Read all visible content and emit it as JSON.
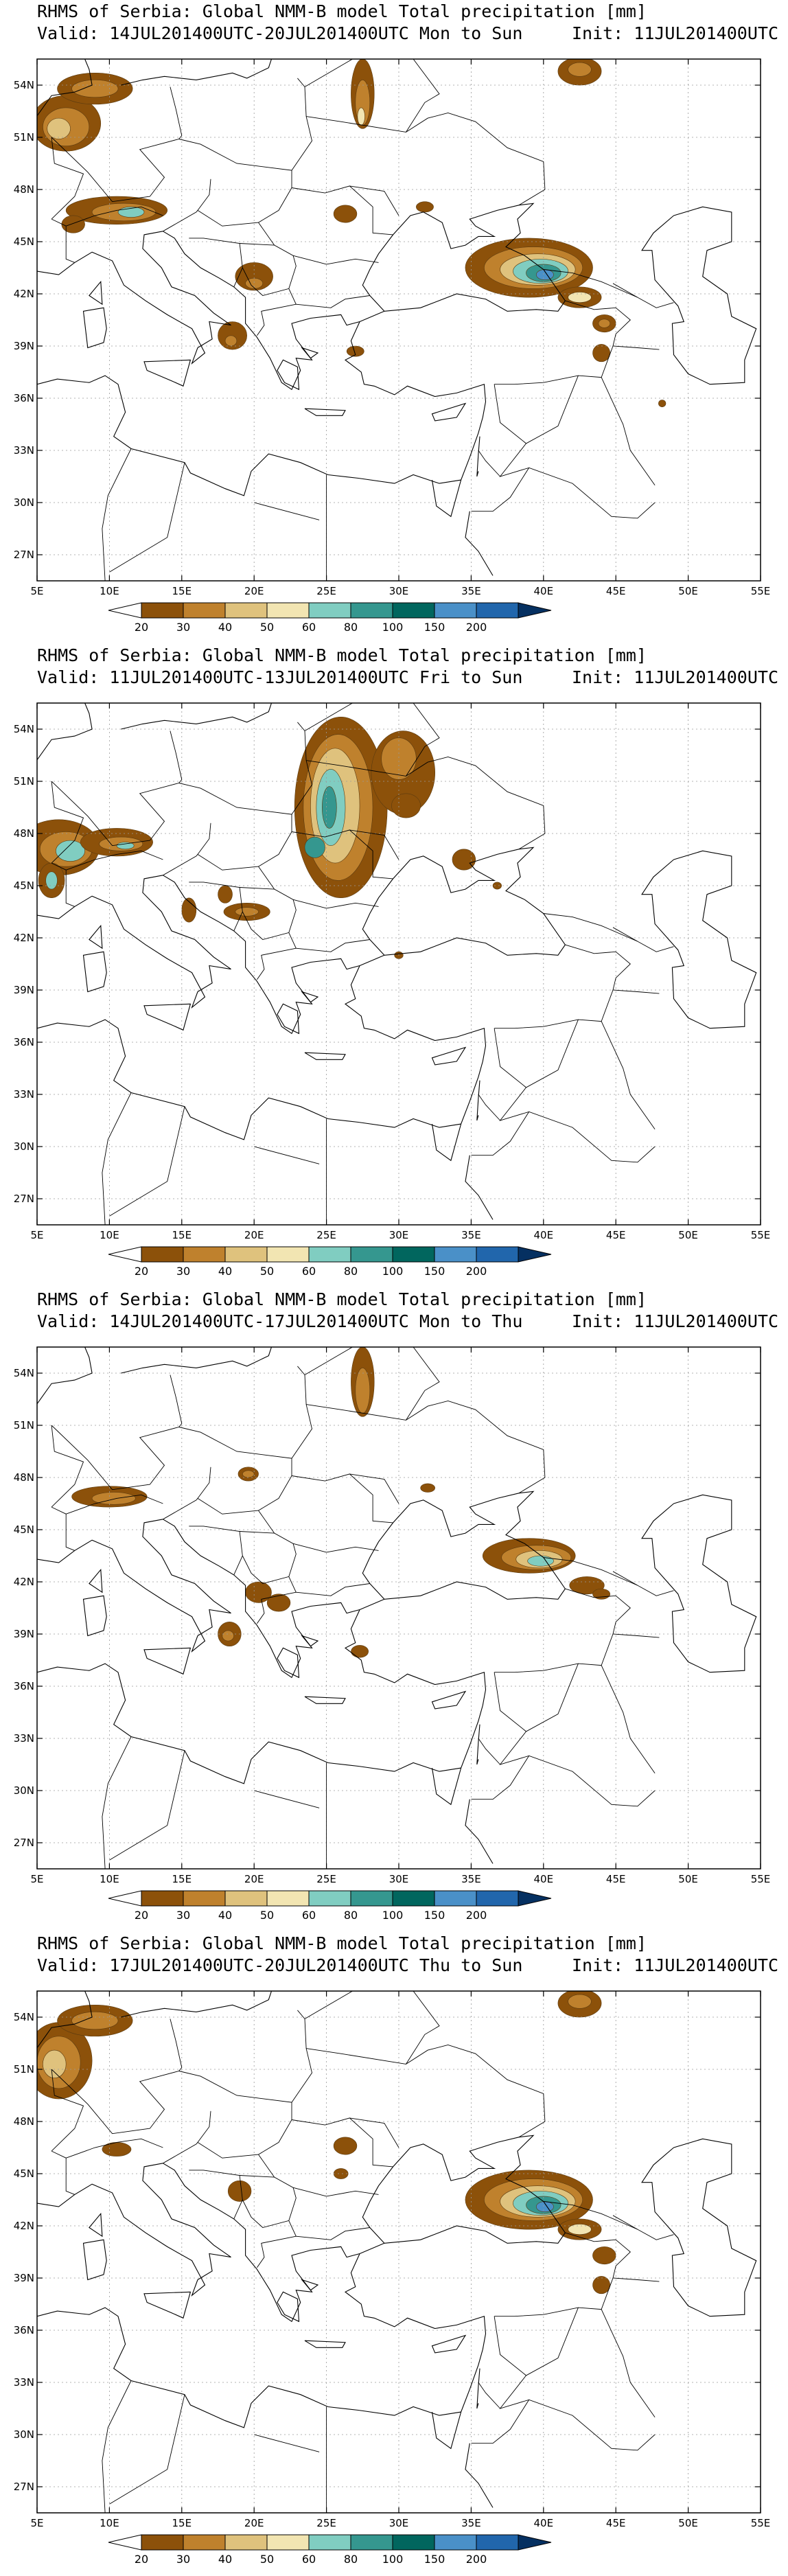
{
  "header_title": "RHMS of Serbia: Global NMM-B model Total precipitation [mm]",
  "panels": [
    {
      "title": "RHMS of Serbia: Global NMM-B model Total precipitation [mm]",
      "valid": "Valid: 14JUL201400UTC-20JUL201400UTC Mon to Sun",
      "init": "Init: 11JUL201400UTC"
    },
    {
      "title": "RHMS of Serbia: Global NMM-B model Total precipitation [mm]",
      "valid": "Valid: 11JUL201400UTC-13JUL201400UTC Fri to Sun",
      "init": "Init: 11JUL201400UTC"
    },
    {
      "title": "RHMS of Serbia: Global NMM-B model Total precipitation [mm]",
      "valid": "Valid: 14JUL201400UTC-17JUL201400UTC Mon to Thu",
      "init": "Init: 11JUL201400UTC"
    },
    {
      "title": "RHMS of Serbia: Global NMM-B model Total precipitation [mm]",
      "valid": "Valid: 17JUL201400UTC-20JUL201400UTC Thu to Sun",
      "init": "Init: 11JUL201400UTC"
    }
  ],
  "map_axes": {
    "lon_labels": [
      "5E",
      "10E",
      "15E",
      "20E",
      "25E",
      "30E",
      "35E",
      "40E",
      "45E",
      "50E",
      "55E"
    ],
    "lat_labels": [
      "54N",
      "51N",
      "48N",
      "45N",
      "42N",
      "39N",
      "36N",
      "33N",
      "30N",
      "27N"
    ],
    "lon_range": [
      5,
      55
    ],
    "lat_range": [
      25.5,
      55.5
    ]
  },
  "colorbar": {
    "labels": [
      "20",
      "30",
      "40",
      "50",
      "60",
      "80",
      "100",
      "150",
      "200"
    ],
    "colors": [
      "#8c510a",
      "#bf812d",
      "#dfc27d",
      "#f2e5b2",
      "#80cdc1",
      "#35978f",
      "#01665e",
      "#4a90c8",
      "#2166ac",
      "#053061"
    ]
  }
}
